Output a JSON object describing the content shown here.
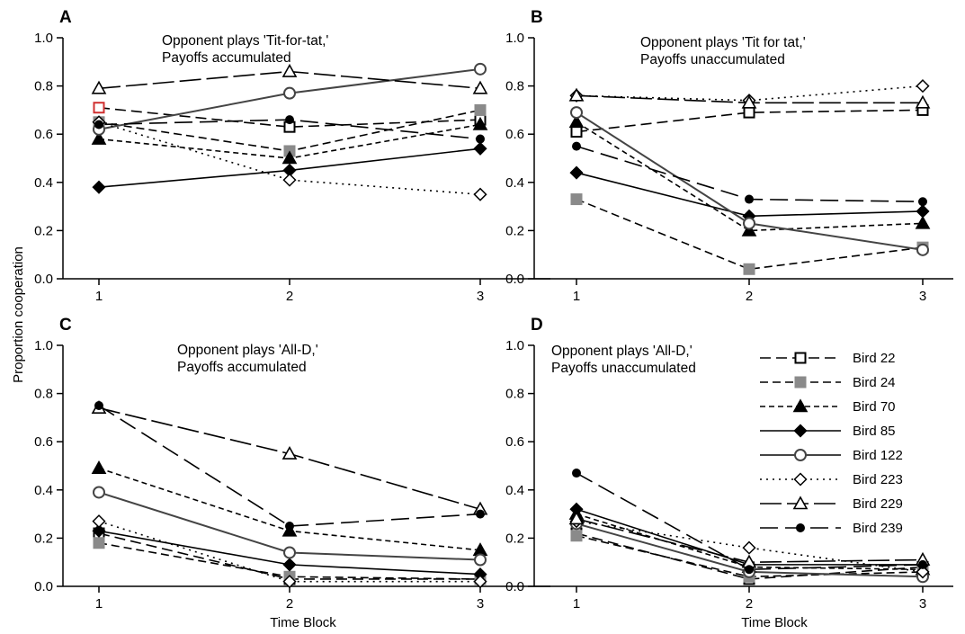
{
  "figure": {
    "ylabel": "Proportion cooperation",
    "xlabel": "Time Block"
  },
  "legend": [
    "Bird 22",
    "Bird 24",
    "Bird 70",
    "Bird 85",
    "Bird 122",
    "Bird 223",
    "Bird 229",
    "Bird 239"
  ],
  "series_styles": {
    "Bird 22": {
      "dash": "12,6",
      "color": "#000000",
      "marker": "square",
      "fill": "#ffffff",
      "stroke": "#000000"
    },
    "Bird 24": {
      "dash": "9,5",
      "color": "#000000",
      "marker": "square",
      "fill": "#8a8a8a",
      "stroke": "#8a8a8a"
    },
    "Bird 70": {
      "dash": "6,4",
      "color": "#000000",
      "marker": "triangle",
      "fill": "#000000",
      "stroke": "#000000"
    },
    "Bird 85": {
      "dash": "",
      "color": "#000000",
      "marker": "diamond",
      "fill": "#000000",
      "stroke": "#000000"
    },
    "Bird 122": {
      "dash": "",
      "color": "#444444",
      "marker": "circle",
      "fill": "#ffffff",
      "stroke": "#444444"
    },
    "Bird 223": {
      "dash": "2,5",
      "color": "#000000",
      "marker": "diamond",
      "fill": "#ffffff",
      "stroke": "#000000"
    },
    "Bird 229": {
      "dash": "24,6",
      "color": "#000000",
      "marker": "triangle",
      "fill": "#ffffff",
      "stroke": "#000000"
    },
    "Bird 239": {
      "dash": "20,8",
      "color": "#000000",
      "marker": "dot",
      "fill": "#000000",
      "stroke": "#000000"
    }
  },
  "chart_data": [
    {
      "type": "line",
      "panel": "A",
      "annotation": [
        "Opponent plays 'Tit-for-tat,'",
        "Payoffs accumulated"
      ],
      "x": [
        1,
        2,
        3
      ],
      "xticks": [
        "1",
        "2",
        "3"
      ],
      "ylim": [
        0,
        1
      ],
      "yticks": [
        "0.0",
        "0.2",
        "0.4",
        "0.6",
        "0.8",
        "1.0"
      ],
      "series": [
        {
          "name": "Bird 22",
          "values": [
            0.71,
            0.63,
            0.66
          ],
          "first_marker_color": "#d03030"
        },
        {
          "name": "Bird 24",
          "values": [
            0.65,
            0.53,
            0.7
          ]
        },
        {
          "name": "Bird 70",
          "values": [
            0.58,
            0.5,
            0.64
          ]
        },
        {
          "name": "Bird 85",
          "values": [
            0.38,
            0.45,
            0.54
          ]
        },
        {
          "name": "Bird 122",
          "values": [
            0.62,
            0.77,
            0.87
          ]
        },
        {
          "name": "Bird 223",
          "values": [
            0.65,
            0.41,
            0.35
          ]
        },
        {
          "name": "Bird 229",
          "values": [
            0.79,
            0.86,
            0.79
          ]
        },
        {
          "name": "Bird 239",
          "values": [
            0.64,
            0.66,
            0.58
          ]
        }
      ]
    },
    {
      "type": "line",
      "panel": "B",
      "annotation": [
        "Opponent plays 'Tit for tat,'",
        "Payoffs unaccumulated"
      ],
      "x": [
        1,
        2,
        3
      ],
      "xticks": [
        "1",
        "2",
        "3"
      ],
      "ylim": [
        0,
        1
      ],
      "yticks": [
        "0.0",
        "0.2",
        "0.4",
        "0.6",
        "0.8",
        "1.0"
      ],
      "series": [
        {
          "name": "Bird 22",
          "values": [
            0.61,
            0.69,
            0.7
          ]
        },
        {
          "name": "Bird 24",
          "values": [
            0.33,
            0.04,
            0.13
          ]
        },
        {
          "name": "Bird 70",
          "values": [
            0.65,
            0.2,
            0.23
          ]
        },
        {
          "name": "Bird 85",
          "values": [
            0.44,
            0.26,
            0.28
          ]
        },
        {
          "name": "Bird 122",
          "values": [
            0.69,
            0.23,
            0.12
          ]
        },
        {
          "name": "Bird 223",
          "values": [
            0.76,
            0.74,
            0.8
          ]
        },
        {
          "name": "Bird 229",
          "values": [
            0.76,
            0.73,
            0.73
          ]
        },
        {
          "name": "Bird 239",
          "values": [
            0.55,
            0.33,
            0.32
          ]
        }
      ]
    },
    {
      "type": "line",
      "panel": "C",
      "annotation": [
        "Opponent plays 'All-D,'",
        "Payoffs accumulated"
      ],
      "x": [
        1,
        2,
        3
      ],
      "xticks": [
        "1",
        "2",
        "3"
      ],
      "ylim": [
        0,
        1
      ],
      "yticks": [
        "0.0",
        "0.2",
        "0.4",
        "0.6",
        "0.8",
        "1.0"
      ],
      "series": [
        {
          "name": "Bird 22",
          "values": [
            0.22,
            0.03,
            0.03
          ]
        },
        {
          "name": "Bird 24",
          "values": [
            0.18,
            0.04,
            0.03
          ]
        },
        {
          "name": "Bird 70",
          "values": [
            0.49,
            0.23,
            0.15
          ]
        },
        {
          "name": "Bird 85",
          "values": [
            0.23,
            0.09,
            0.05
          ]
        },
        {
          "name": "Bird 122",
          "values": [
            0.39,
            0.14,
            0.11
          ]
        },
        {
          "name": "Bird 223",
          "values": [
            0.27,
            0.02,
            0.02
          ]
        },
        {
          "name": "Bird 229",
          "values": [
            0.74,
            0.55,
            0.32
          ]
        },
        {
          "name": "Bird 239",
          "values": [
            0.75,
            0.25,
            0.3
          ]
        }
      ]
    },
    {
      "type": "line",
      "panel": "D",
      "annotation": [
        "Opponent plays 'All-D,'",
        "Payoffs unaccumulated"
      ],
      "x": [
        1,
        2,
        3
      ],
      "xticks": [
        "1",
        "2",
        "3"
      ],
      "ylim": [
        0,
        1
      ],
      "yticks": [
        "0.0",
        "0.2",
        "0.4",
        "0.6",
        "0.8",
        "1.0"
      ],
      "legend": true,
      "series": [
        {
          "name": "Bird 22",
          "values": [
            0.22,
            0.03,
            0.08
          ]
        },
        {
          "name": "Bird 24",
          "values": [
            0.21,
            0.04,
            0.06
          ]
        },
        {
          "name": "Bird 70",
          "values": [
            0.3,
            0.08,
            0.07
          ]
        },
        {
          "name": "Bird 85",
          "values": [
            0.32,
            0.09,
            0.09
          ]
        },
        {
          "name": "Bird 122",
          "values": [
            0.26,
            0.06,
            0.04
          ]
        },
        {
          "name": "Bird 223",
          "values": [
            0.27,
            0.16,
            0.06
          ]
        },
        {
          "name": "Bird 229",
          "values": [
            0.28,
            0.1,
            0.11
          ]
        },
        {
          "name": "Bird 239",
          "values": [
            0.47,
            0.07,
            0.09
          ]
        }
      ]
    }
  ]
}
